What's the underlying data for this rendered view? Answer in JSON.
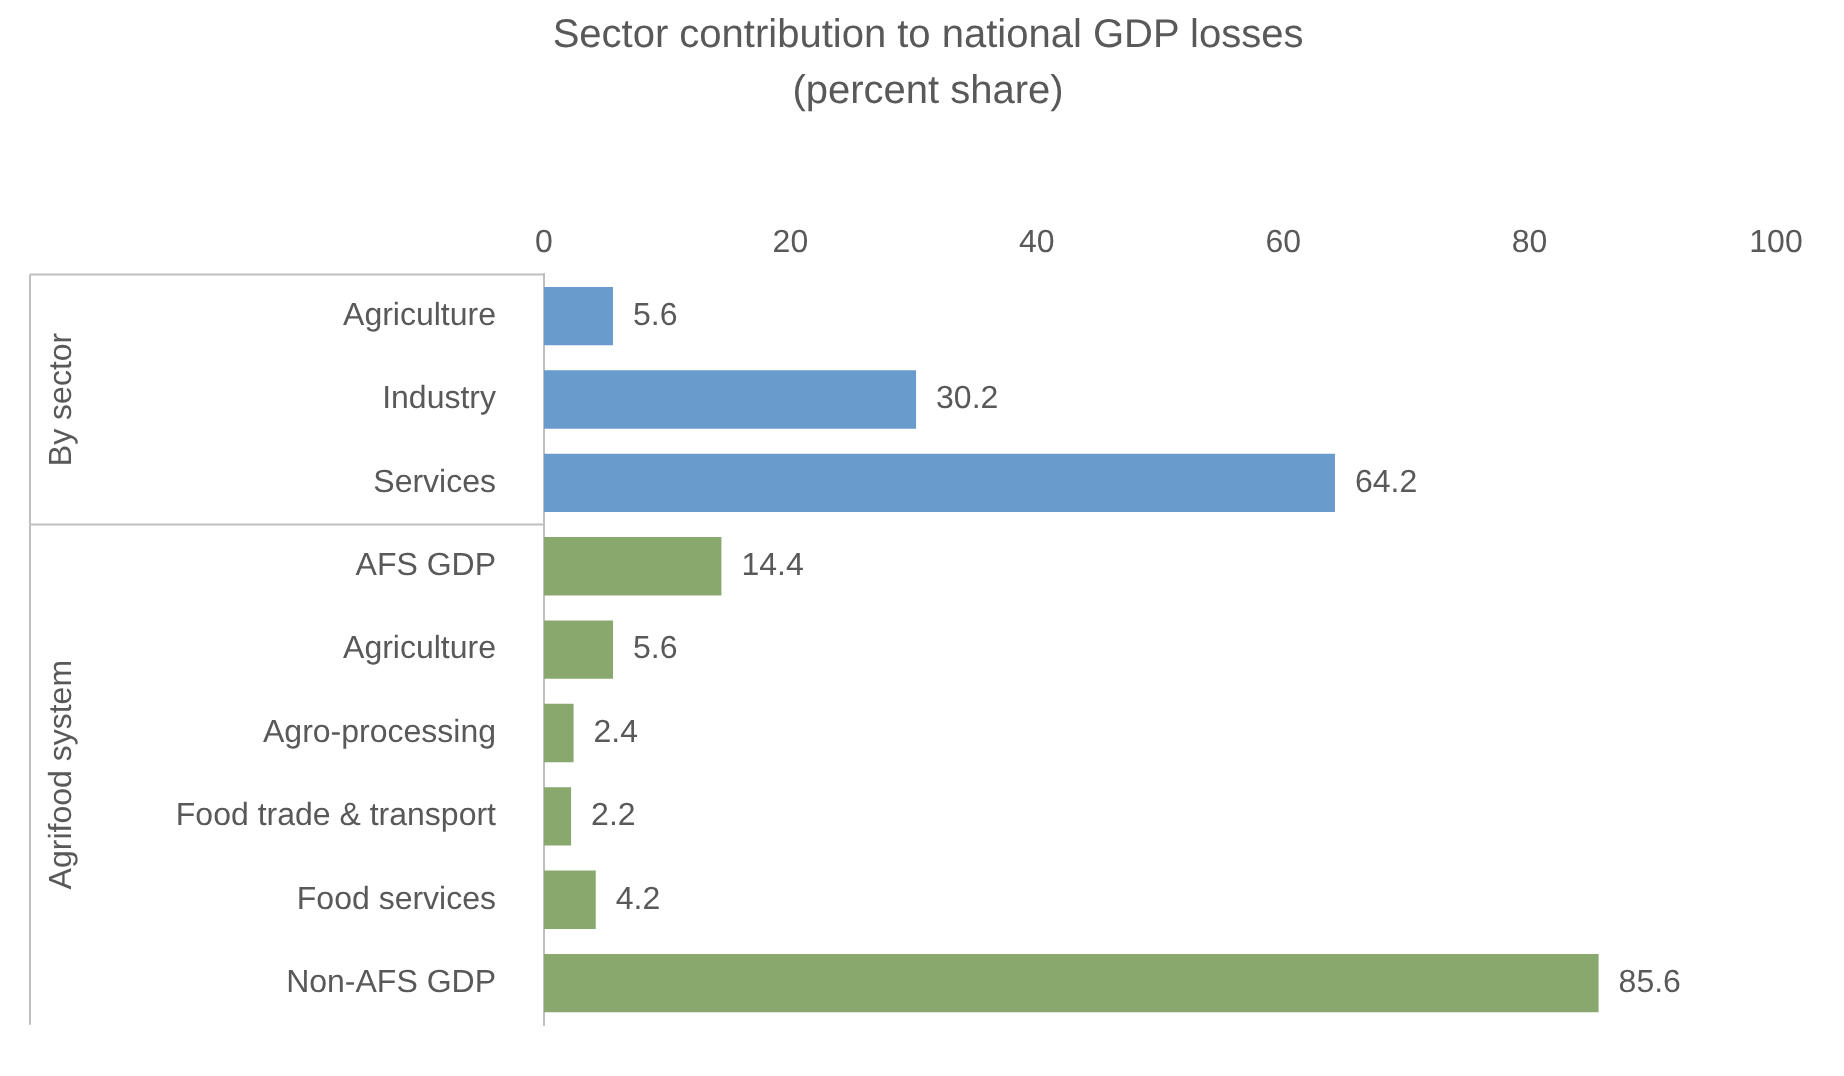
{
  "chart_data": {
    "type": "bar",
    "orientation": "horizontal",
    "title": "Sector contribution to national GDP losses",
    "subtitle": "(percent share)",
    "categories": [
      "Agriculture",
      "Industry",
      "Services",
      "AFS GDP",
      "Agriculture",
      "Agro-processing",
      "Food trade & transport",
      "Food services",
      "Non-AFS GDP"
    ],
    "values": [
      5.6,
      30.2,
      64.2,
      14.4,
      5.6,
      2.4,
      2.2,
      4.2,
      85.6
    ],
    "colors": [
      "#699bcc",
      "#699bcc",
      "#699bcc",
      "#88a86e",
      "#88a86e",
      "#88a86e",
      "#88a86e",
      "#88a86e",
      "#88a86e"
    ],
    "xlim": [
      0,
      100
    ],
    "xticks": [
      0,
      20,
      40,
      60,
      80,
      100
    ],
    "data_labels": true,
    "grid": false,
    "legend": false,
    "annotations": [
      "By sector",
      "Agrifood system"
    ]
  }
}
